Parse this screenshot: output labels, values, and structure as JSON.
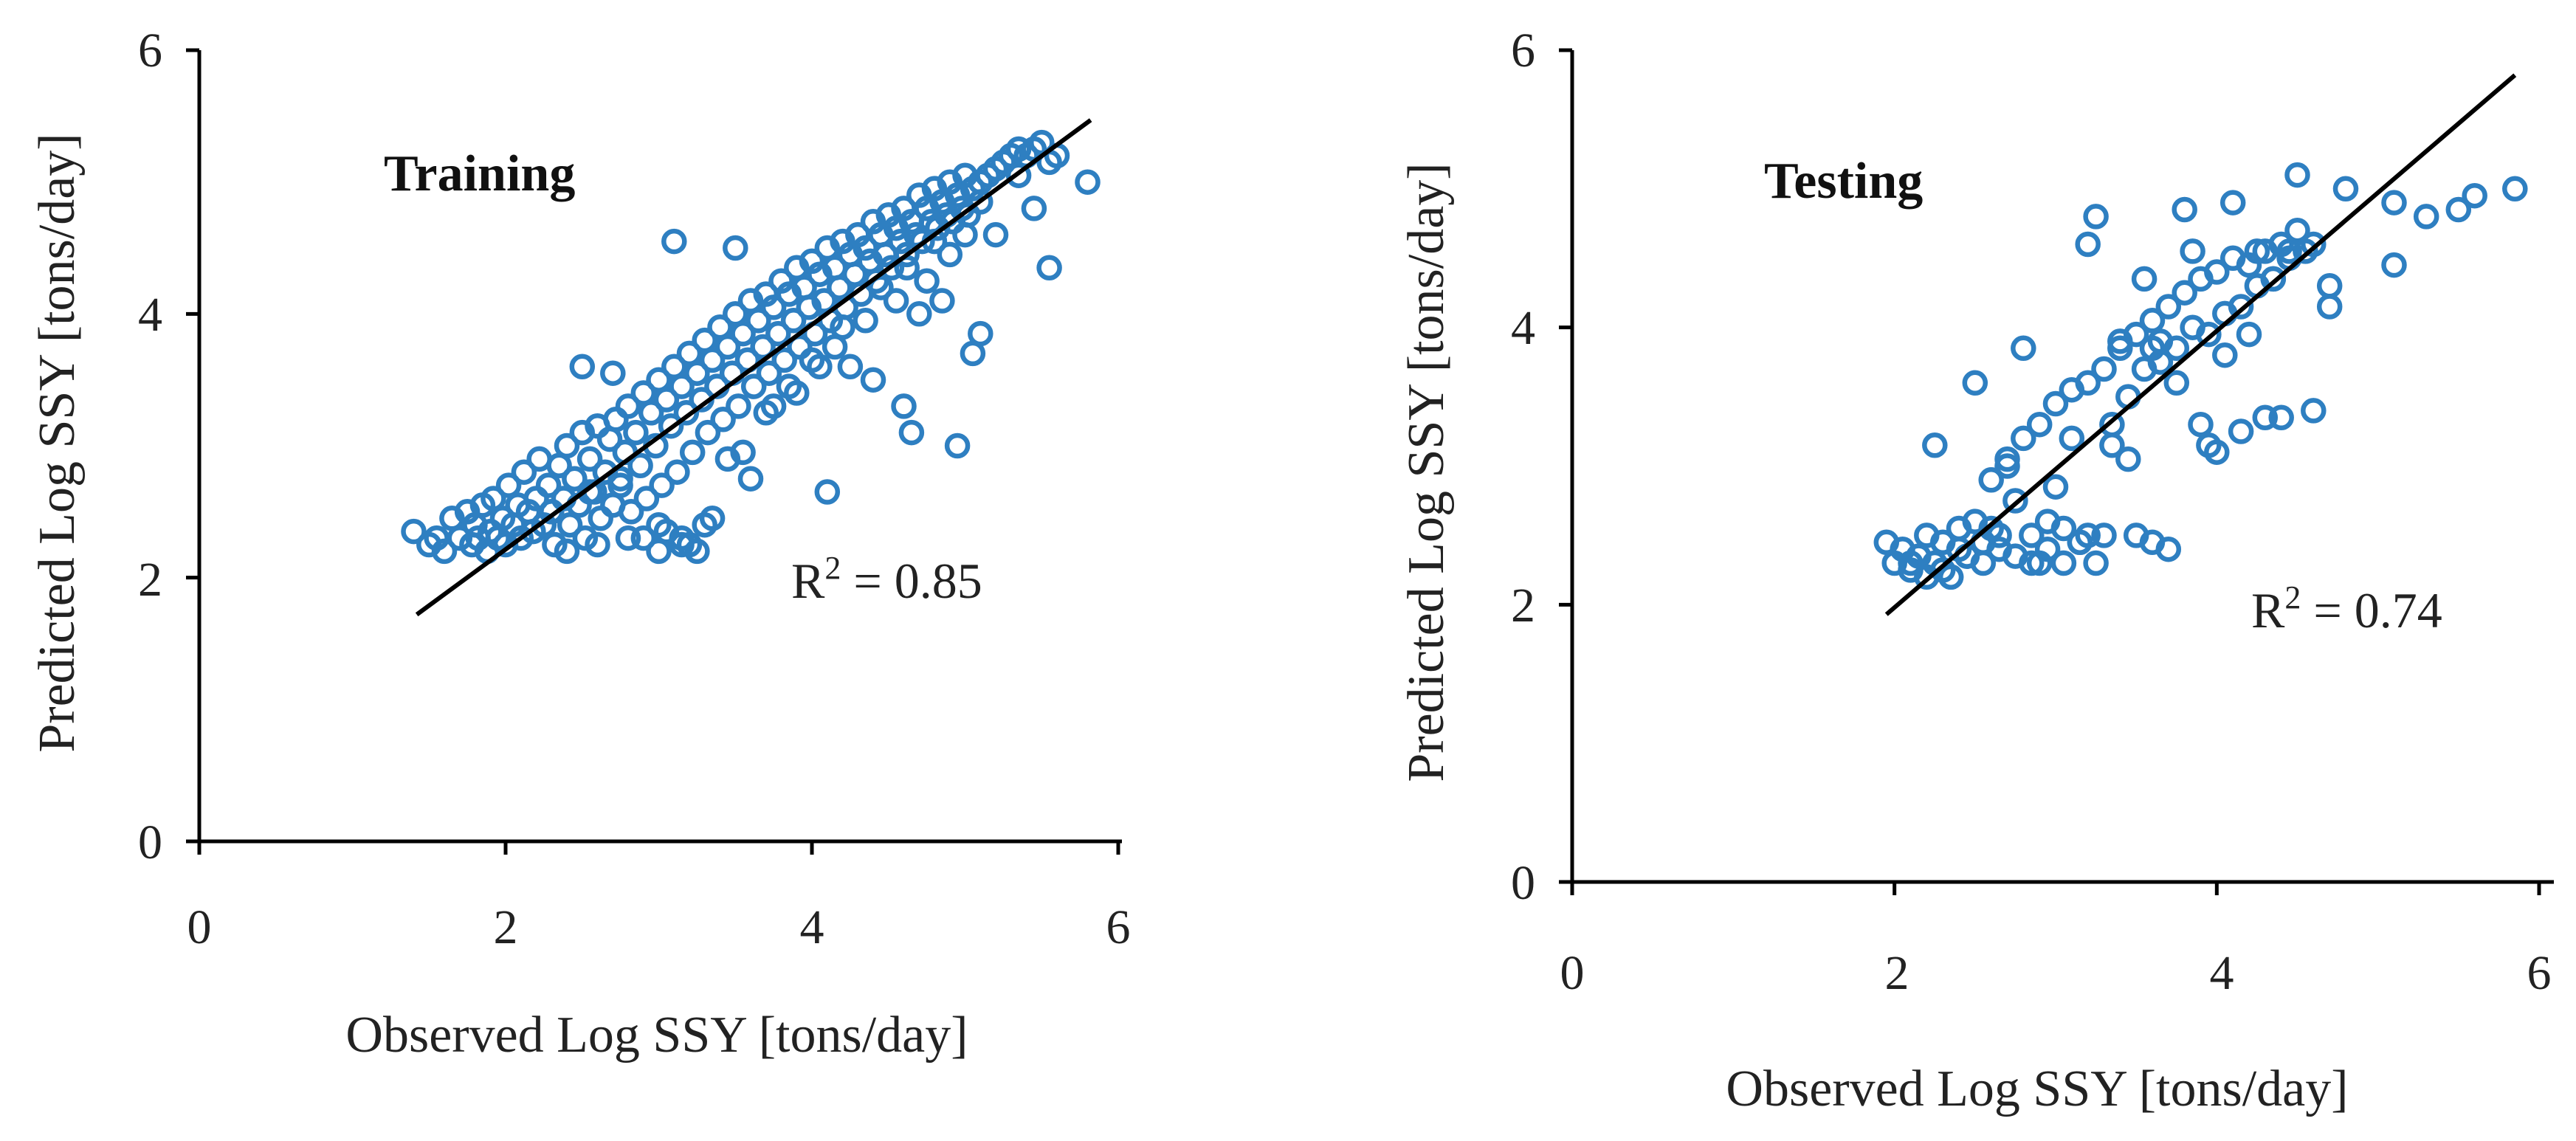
{
  "chart_data": [
    {
      "type": "scatter",
      "panel": "Training",
      "title": "Training",
      "xlabel": "Observed Log SSY [tons/day]",
      "ylabel": "Predicted Log SSY [tons/day]",
      "xlim": [
        0,
        6
      ],
      "ylim": [
        0,
        6
      ],
      "xticks": [
        0,
        2,
        4,
        6
      ],
      "yticks": [
        0,
        2,
        4,
        6
      ],
      "xtick_labels": [
        "0",
        "2",
        "4",
        "6"
      ],
      "ytick_labels": [
        "0",
        "2",
        "4",
        "6"
      ],
      "grid": false,
      "marker": "open-circle",
      "marker_color": "#2E7FC1",
      "fit_line": {
        "x": [
          1.42,
          5.82
        ],
        "y": [
          1.72,
          5.47
        ]
      },
      "r2": {
        "base": "R",
        "sup": "2",
        "text": " = 0.85"
      },
      "series": [
        {
          "name": "Training",
          "x": [
            1.4,
            1.5,
            1.55,
            1.6,
            1.65,
            1.7,
            1.75,
            1.78,
            1.8,
            1.82,
            1.85,
            1.88,
            1.9,
            1.92,
            1.95,
            1.98,
            2.0,
            2.02,
            2.05,
            2.08,
            2.1,
            2.12,
            2.15,
            2.18,
            2.2,
            2.22,
            2.25,
            2.28,
            2.3,
            2.32,
            2.35,
            2.38,
            2.4,
            2.42,
            2.45,
            2.48,
            2.5,
            2.52,
            2.55,
            2.58,
            2.6,
            2.62,
            2.65,
            2.68,
            2.7,
            2.72,
            2.75,
            2.78,
            2.8,
            2.82,
            2.85,
            2.88,
            2.9,
            2.92,
            2.95,
            2.98,
            3.0,
            3.02,
            3.05,
            3.08,
            3.1,
            3.12,
            3.15,
            3.18,
            3.2,
            3.22,
            3.25,
            3.28,
            3.3,
            3.32,
            3.35,
            3.38,
            3.4,
            3.42,
            3.45,
            3.48,
            3.5,
            3.52,
            3.55,
            3.58,
            3.6,
            3.62,
            3.65,
            3.68,
            3.7,
            3.72,
            3.75,
            3.78,
            3.8,
            3.82,
            3.85,
            3.88,
            3.9,
            3.92,
            3.95,
            3.98,
            4.0,
            4.02,
            4.05,
            4.08,
            4.1,
            4.12,
            4.15,
            4.18,
            4.2,
            4.22,
            4.25,
            4.28,
            4.3,
            4.32,
            4.35,
            4.38,
            4.4,
            4.42,
            4.45,
            4.48,
            4.5,
            4.52,
            4.55,
            4.58,
            4.6,
            4.62,
            4.65,
            4.68,
            4.7,
            4.72,
            4.75,
            4.78,
            4.8,
            4.82,
            4.85,
            4.88,
            4.9,
            4.92,
            4.95,
            4.98,
            5.0,
            5.02,
            5.05,
            5.1,
            5.15,
            5.2,
            5.25,
            5.3,
            5.35,
            5.4,
            5.45,
            5.5,
            5.55,
            5.6,
            5.8,
            2.5,
            2.7,
            3.1,
            3.5,
            3.2,
            4.1,
            4.6,
            4.65,
            4.95,
            5.05,
            5.55,
            5.1,
            4.4,
            3.6,
            3.0,
            2.9,
            3.15,
            3.25,
            3.9,
            4.25,
            4.7,
            4.85,
            5.2,
            5.45,
            2.4,
            2.6,
            2.8,
            3.05,
            3.35,
            3.45,
            3.75,
            4.05,
            4.15,
            4.35,
            4.55,
            4.75,
            4.9,
            5.0,
            2.3,
            2.55,
            2.75,
            3.0,
            3.15,
            3.3,
            3.55,
            3.7,
            3.85,
            4.0,
            4.2,
            4.45,
            4.62,
            4.8,
            5.1,
            5.35
          ],
          "y": [
            2.35,
            2.25,
            2.3,
            2.2,
            2.45,
            2.3,
            2.5,
            2.25,
            2.4,
            2.3,
            2.55,
            2.2,
            2.35,
            2.6,
            2.3,
            2.45,
            2.25,
            2.7,
            2.4,
            2.55,
            2.3,
            2.8,
            2.5,
            2.35,
            2.6,
            2.9,
            2.4,
            2.7,
            2.5,
            2.25,
            2.85,
            2.6,
            3.0,
            2.4,
            2.75,
            2.55,
            3.1,
            2.3,
            2.9,
            2.65,
            3.15,
            2.45,
            2.8,
            3.05,
            2.55,
            3.2,
            2.7,
            2.95,
            3.3,
            2.5,
            3.1,
            2.85,
            3.4,
            2.6,
            3.25,
            3.0,
            3.5,
            2.7,
            3.35,
            3.15,
            3.6,
            2.8,
            3.45,
            3.25,
            3.7,
            2.95,
            3.55,
            3.35,
            3.8,
            3.1,
            3.65,
            3.45,
            3.9,
            3.2,
            3.75,
            3.55,
            4.0,
            3.3,
            3.85,
            3.65,
            4.1,
            3.45,
            3.95,
            3.75,
            4.15,
            3.55,
            4.05,
            3.85,
            4.25,
            3.65,
            4.15,
            3.95,
            4.35,
            3.75,
            4.2,
            4.05,
            4.4,
            3.85,
            4.3,
            4.1,
            4.5,
            3.95,
            4.35,
            4.2,
            4.55,
            4.05,
            4.45,
            4.3,
            4.6,
            4.15,
            4.5,
            4.4,
            4.7,
            4.25,
            4.6,
            4.45,
            4.75,
            4.35,
            4.65,
            4.55,
            4.8,
            4.45,
            4.7,
            4.6,
            4.9,
            4.55,
            4.8,
            4.7,
            4.95,
            4.65,
            4.85,
            4.75,
            5.0,
            4.7,
            4.9,
            4.8,
            5.05,
            4.75,
            4.95,
            5.0,
            5.05,
            5.1,
            5.15,
            5.2,
            5.25,
            5.2,
            5.25,
            5.3,
            5.15,
            5.2,
            5.0,
            3.6,
            3.55,
            4.55,
            4.5,
            2.25,
            2.65,
            3.3,
            3.1,
            3.0,
            3.7,
            4.35,
            3.85,
            3.5,
            2.75,
            2.4,
            2.3,
            2.25,
            2.2,
            3.4,
            3.6,
            4.0,
            4.1,
            4.6,
            4.8,
            2.2,
            2.25,
            2.3,
            2.35,
            2.45,
            2.9,
            3.3,
            3.6,
            3.75,
            3.95,
            4.1,
            4.25,
            4.45,
            4.6,
            2.5,
            2.65,
            2.75,
            2.2,
            2.3,
            2.4,
            2.95,
            3.25,
            3.45,
            3.65,
            3.9,
            4.2,
            4.35,
            4.55,
            4.85,
            5.05
          ]
        }
      ]
    },
    {
      "type": "scatter",
      "panel": "Testing",
      "title": "Testing",
      "xlabel": "Observed Log SSY [tons/day]",
      "ylabel": "Predicted Log SSY [tons/day]",
      "xlim": [
        0,
        6
      ],
      "ylim": [
        0,
        6
      ],
      "xticks": [
        0,
        2,
        4,
        6
      ],
      "yticks": [
        0,
        2,
        4,
        6
      ],
      "xtick_labels": [
        "0",
        "2",
        "4",
        "6"
      ],
      "ytick_labels": [
        "0",
        "2",
        "4",
        "6"
      ],
      "grid": false,
      "marker": "open-circle",
      "marker_color": "#2E7FC1",
      "fit_line": {
        "x": [
          1.95,
          5.85
        ],
        "y": [
          1.93,
          5.82
        ]
      },
      "r2": {
        "base": "R",
        "sup": "2",
        "text": " = 0.74"
      },
      "series": [
        {
          "name": "Testing",
          "x": [
            1.95,
            2.0,
            2.05,
            2.1,
            2.15,
            2.2,
            2.25,
            2.3,
            2.35,
            2.4,
            2.45,
            2.5,
            2.55,
            2.6,
            2.65,
            2.7,
            2.75,
            2.8,
            2.85,
            2.9,
            2.95,
            3.0,
            3.05,
            3.1,
            3.15,
            3.2,
            3.25,
            3.3,
            3.35,
            3.4,
            3.45,
            3.5,
            3.55,
            3.6,
            3.65,
            3.7,
            3.75,
            3.8,
            3.85,
            3.9,
            3.95,
            4.0,
            4.05,
            4.1,
            4.15,
            4.2,
            4.25,
            4.3,
            4.35,
            4.4,
            4.45,
            4.5,
            4.55,
            4.6,
            4.7,
            4.8,
            5.1,
            5.3,
            5.5,
            5.6,
            5.85,
            2.25,
            2.5,
            2.8,
            3.2,
            3.25,
            3.55,
            3.8,
            4.0,
            4.1,
            4.4,
            4.45,
            4.5,
            4.7,
            5.1,
            2.2,
            2.4,
            2.6,
            2.7,
            2.9,
            3.0,
            3.1,
            3.3,
            3.4,
            3.6,
            3.7,
            3.9,
            4.2,
            4.3,
            2.3,
            2.45,
            2.65,
            2.85,
            3.05,
            3.15,
            3.35,
            3.5,
            3.65,
            3.75,
            3.95,
            4.15,
            4.35,
            4.6,
            2.1,
            2.35,
            2.55,
            2.75,
            2.95,
            3.2,
            3.45,
            3.6,
            3.85,
            4.05,
            4.25
          ],
          "y": [
            2.45,
            2.3,
            2.4,
            2.25,
            2.35,
            2.5,
            2.3,
            2.45,
            2.2,
            2.55,
            2.35,
            2.6,
            2.3,
            2.9,
            2.4,
            3.0,
            2.35,
            3.2,
            2.5,
            3.3,
            2.4,
            3.45,
            2.3,
            3.55,
            2.45,
            3.6,
            2.3,
            3.7,
            3.3,
            3.85,
            3.5,
            3.95,
            3.7,
            4.05,
            3.9,
            4.15,
            3.85,
            4.25,
            4.0,
            4.35,
            3.95,
            4.4,
            4.1,
            4.5,
            4.15,
            4.45,
            4.3,
            4.55,
            4.35,
            4.6,
            4.5,
            4.7,
            4.55,
            4.6,
            4.3,
            5.0,
            4.9,
            4.8,
            4.85,
            4.95,
            5.0,
            3.15,
            3.6,
            3.85,
            4.6,
            4.8,
            4.35,
            4.85,
            3.1,
            4.9,
            3.35,
            4.55,
            5.1,
            4.15,
            4.45,
            2.2,
            2.4,
            2.55,
            3.05,
            2.3,
            2.85,
            3.2,
            2.5,
            3.9,
            2.45,
            2.4,
            3.3,
            3.95,
            3.35,
            2.25,
            2.35,
            2.5,
            2.3,
            2.55,
            2.45,
            3.15,
            2.5,
            3.75,
            3.6,
            3.15,
            3.25,
            4.35,
            3.4,
            2.3,
            2.2,
            2.45,
            2.75,
            2.6,
            2.5,
            3.05,
            3.85,
            4.55,
            3.8,
            4.55
          ]
        }
      ]
    }
  ]
}
